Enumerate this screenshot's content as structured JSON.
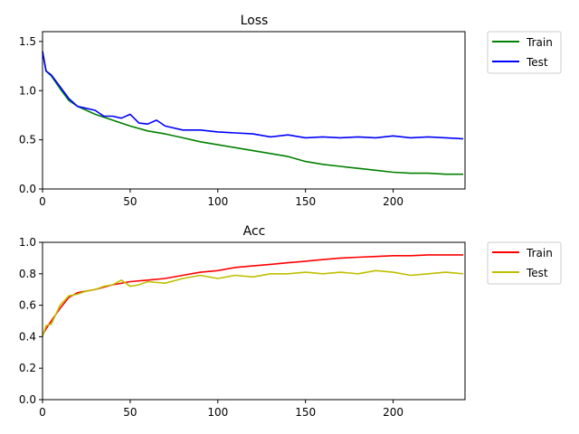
{
  "chart_data": [
    {
      "type": "line",
      "title": "Loss",
      "xlabel": "",
      "ylabel": "",
      "xlim": [
        0,
        241
      ],
      "ylim": [
        0,
        1.6
      ],
      "xticks": [
        0,
        50,
        100,
        150,
        200
      ],
      "yticks": [
        0.0,
        0.5,
        1.0,
        1.5
      ],
      "xtick_labels": [
        "0",
        "50",
        "100",
        "150",
        "200"
      ],
      "ytick_labels": [
        "0.0",
        "0.5",
        "1.0",
        "1.5"
      ],
      "legend_placement": "outside-top-right",
      "series": [
        {
          "name": "Train",
          "color": "#008000",
          "x": [
            0,
            2,
            5,
            10,
            15,
            20,
            30,
            40,
            50,
            60,
            70,
            80,
            90,
            100,
            110,
            120,
            130,
            140,
            150,
            160,
            170,
            180,
            190,
            200,
            210,
            220,
            230,
            240
          ],
          "y": [
            1.4,
            1.2,
            1.15,
            1.02,
            0.9,
            0.84,
            0.76,
            0.7,
            0.64,
            0.59,
            0.56,
            0.52,
            0.48,
            0.45,
            0.42,
            0.39,
            0.36,
            0.33,
            0.28,
            0.25,
            0.23,
            0.21,
            0.19,
            0.17,
            0.16,
            0.16,
            0.15,
            0.15
          ]
        },
        {
          "name": "Test",
          "color": "#0000ff",
          "x": [
            0,
            2,
            5,
            10,
            15,
            20,
            25,
            30,
            35,
            40,
            45,
            50,
            55,
            60,
            65,
            70,
            80,
            90,
            100,
            110,
            120,
            130,
            140,
            150,
            160,
            170,
            180,
            190,
            200,
            210,
            220,
            230,
            240
          ],
          "y": [
            1.4,
            1.2,
            1.16,
            1.04,
            0.92,
            0.84,
            0.82,
            0.8,
            0.74,
            0.74,
            0.72,
            0.76,
            0.67,
            0.66,
            0.7,
            0.64,
            0.6,
            0.6,
            0.58,
            0.57,
            0.56,
            0.53,
            0.55,
            0.52,
            0.53,
            0.52,
            0.53,
            0.52,
            0.54,
            0.52,
            0.53,
            0.52,
            0.51
          ]
        }
      ]
    },
    {
      "type": "line",
      "title": "Acc",
      "xlabel": "",
      "ylabel": "",
      "xlim": [
        0,
        241
      ],
      "ylim": [
        0,
        1.0
      ],
      "xticks": [
        0,
        50,
        100,
        150,
        200
      ],
      "yticks": [
        0.0,
        0.2,
        0.4,
        0.6,
        0.8,
        1.0
      ],
      "xtick_labels": [
        "0",
        "50",
        "100",
        "150",
        "200"
      ],
      "ytick_labels": [
        "0.0",
        "0.2",
        "0.4",
        "0.6",
        "0.8",
        "1.0"
      ],
      "legend_placement": "outside-top-right",
      "series": [
        {
          "name": "Train",
          "color": "#ff0000",
          "x": [
            0,
            2,
            5,
            10,
            15,
            20,
            30,
            40,
            50,
            60,
            70,
            80,
            90,
            100,
            110,
            120,
            130,
            140,
            150,
            160,
            170,
            180,
            190,
            200,
            210,
            220,
            230,
            240
          ],
          "y": [
            0.41,
            0.45,
            0.5,
            0.58,
            0.65,
            0.68,
            0.7,
            0.73,
            0.75,
            0.76,
            0.77,
            0.79,
            0.81,
            0.82,
            0.84,
            0.85,
            0.86,
            0.87,
            0.88,
            0.89,
            0.9,
            0.905,
            0.91,
            0.915,
            0.915,
            0.92,
            0.92,
            0.92
          ]
        },
        {
          "name": "Test",
          "color": "#bfbf00",
          "x": [
            0,
            2,
            5,
            10,
            15,
            20,
            25,
            30,
            35,
            40,
            45,
            50,
            55,
            60,
            70,
            80,
            90,
            100,
            110,
            120,
            130,
            140,
            150,
            160,
            170,
            180,
            190,
            200,
            210,
            220,
            230,
            240
          ],
          "y": [
            0.4,
            0.47,
            0.48,
            0.6,
            0.66,
            0.67,
            0.69,
            0.7,
            0.72,
            0.73,
            0.76,
            0.72,
            0.73,
            0.75,
            0.74,
            0.77,
            0.79,
            0.77,
            0.79,
            0.78,
            0.8,
            0.8,
            0.81,
            0.8,
            0.81,
            0.8,
            0.82,
            0.81,
            0.79,
            0.8,
            0.81,
            0.8
          ]
        }
      ]
    }
  ]
}
